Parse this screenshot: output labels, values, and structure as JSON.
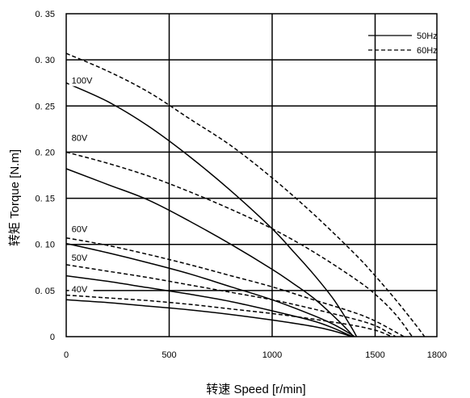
{
  "chart_data": {
    "type": "line",
    "title": "",
    "xlabel": "转速 Speed [r/min]",
    "ylabel": "转矩 Torque [N.m]",
    "xlim": [
      0,
      1800
    ],
    "ylim": [
      0,
      0.35
    ],
    "x_ticks": [
      "0",
      "500",
      "1000",
      "1500",
      "1800"
    ],
    "y_ticks": [
      "0",
      "0. 05",
      "0. 10",
      "0. 15",
      "0. 20",
      "0. 25",
      "0. 30",
      "0. 35"
    ],
    "grid": true,
    "legend": {
      "position": "top-right",
      "entries": [
        {
          "label": "50Hz",
          "style": "solid"
        },
        {
          "label": "60Hz",
          "style": "dashed"
        }
      ]
    },
    "voltage_labels": [
      {
        "text": "100V",
        "x": 120,
        "y": 0.275
      },
      {
        "text": "80V",
        "x": 120,
        "y": 0.213
      },
      {
        "text": "60V",
        "x": 120,
        "y": 0.114
      },
      {
        "text": "50V",
        "x": 120,
        "y": 0.083
      },
      {
        "text": "40V",
        "x": 120,
        "y": 0.049
      }
    ],
    "series": [
      {
        "voltage": "100V",
        "freq": "50Hz",
        "style": "solid",
        "x": [
          0,
          200,
          400,
          600,
          800,
          1000,
          1100,
          1200,
          1300,
          1380,
          1410
        ],
        "y": [
          0.275,
          0.255,
          0.228,
          0.195,
          0.158,
          0.117,
          0.093,
          0.068,
          0.04,
          0.012,
          0
        ]
      },
      {
        "voltage": "100V",
        "freq": "60Hz",
        "style": "dashed",
        "x": [
          0,
          200,
          400,
          600,
          800,
          1000,
          1200,
          1400,
          1500,
          1600,
          1700,
          1740
        ],
        "y": [
          0.307,
          0.288,
          0.265,
          0.236,
          0.207,
          0.172,
          0.133,
          0.09,
          0.066,
          0.04,
          0.012,
          0
        ]
      },
      {
        "voltage": "80V",
        "freq": "50Hz",
        "style": "solid",
        "x": [
          0,
          200,
          400,
          600,
          800,
          1000,
          1100,
          1200,
          1300,
          1380,
          1390
        ],
        "y": [
          0.182,
          0.165,
          0.148,
          0.125,
          0.1,
          0.073,
          0.058,
          0.042,
          0.022,
          0.004,
          0
        ]
      },
      {
        "voltage": "80V",
        "freq": "60Hz",
        "style": "dashed",
        "x": [
          0,
          200,
          400,
          600,
          800,
          1000,
          1200,
          1400,
          1500,
          1600,
          1680
        ],
        "y": [
          0.2,
          0.188,
          0.174,
          0.157,
          0.138,
          0.117,
          0.092,
          0.063,
          0.046,
          0.024,
          0
        ]
      },
      {
        "voltage": "60V",
        "freq": "50Hz",
        "style": "solid",
        "x": [
          0,
          200,
          400,
          600,
          800,
          1000,
          1200,
          1300,
          1380,
          1400
        ],
        "y": [
          0.101,
          0.091,
          0.08,
          0.068,
          0.054,
          0.04,
          0.023,
          0.013,
          0.003,
          0
        ]
      },
      {
        "voltage": "60V",
        "freq": "60Hz",
        "style": "dashed",
        "x": [
          0,
          200,
          400,
          600,
          800,
          1000,
          1200,
          1400,
          1500,
          1600,
          1640
        ],
        "y": [
          0.107,
          0.099,
          0.089,
          0.078,
          0.066,
          0.054,
          0.04,
          0.026,
          0.017,
          0.005,
          0
        ]
      },
      {
        "voltage": "50V",
        "freq": "50Hz",
        "style": "solid",
        "x": [
          0,
          200,
          400,
          600,
          800,
          1000,
          1200,
          1300,
          1370,
          1390
        ],
        "y": [
          0.066,
          0.06,
          0.053,
          0.046,
          0.038,
          0.028,
          0.017,
          0.009,
          0.002,
          0
        ]
      },
      {
        "voltage": "50V",
        "freq": "60Hz",
        "style": "dashed",
        "x": [
          0,
          200,
          400,
          600,
          800,
          1000,
          1200,
          1400,
          1500,
          1560,
          1600
        ],
        "y": [
          0.078,
          0.071,
          0.064,
          0.056,
          0.048,
          0.04,
          0.03,
          0.019,
          0.012,
          0.005,
          0
        ]
      },
      {
        "voltage": "40V",
        "freq": "50Hz",
        "style": "solid",
        "x": [
          0,
          200,
          400,
          600,
          800,
          1000,
          1200,
          1300,
          1360,
          1380
        ],
        "y": [
          0.04,
          0.037,
          0.033,
          0.029,
          0.024,
          0.018,
          0.011,
          0.006,
          0.002,
          0
        ]
      },
      {
        "voltage": "40V",
        "freq": "60Hz",
        "style": "dashed",
        "x": [
          0,
          200,
          400,
          600,
          800,
          1000,
          1200,
          1400,
          1500,
          1550,
          1580
        ],
        "y": [
          0.045,
          0.042,
          0.039,
          0.035,
          0.03,
          0.025,
          0.019,
          0.012,
          0.007,
          0.003,
          0
        ]
      }
    ]
  }
}
